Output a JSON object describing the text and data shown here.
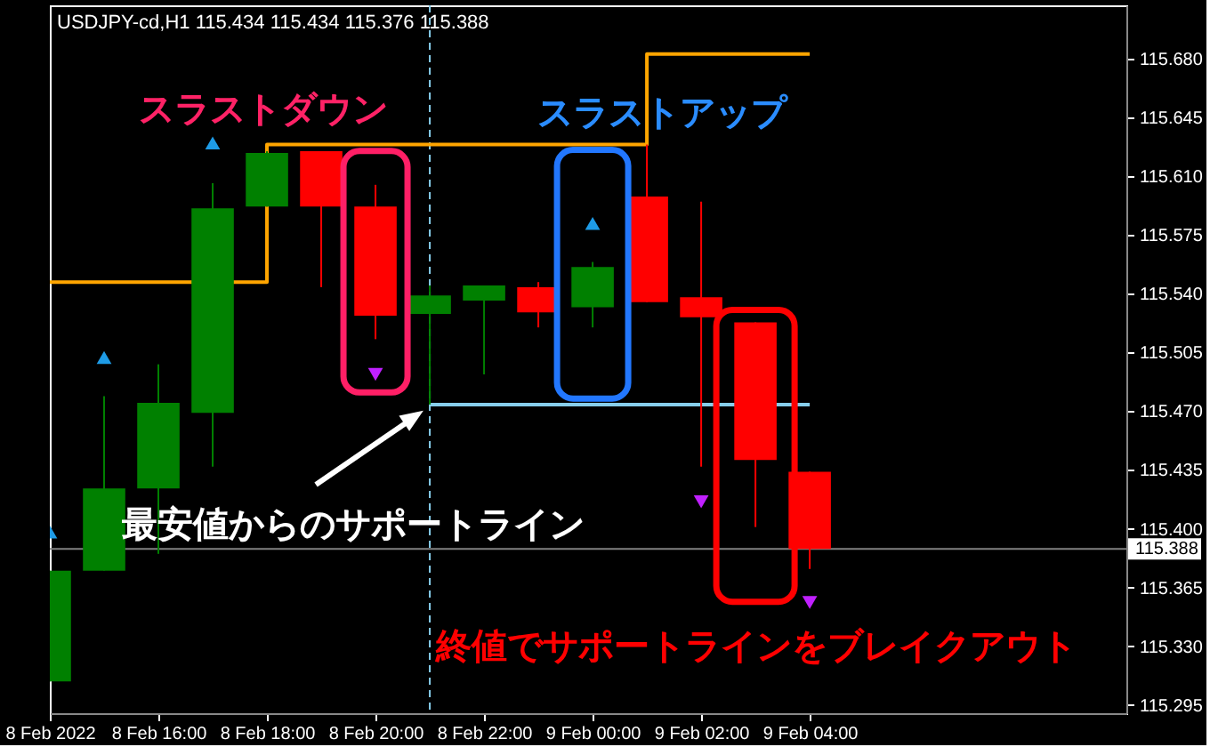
{
  "chart_data": {
    "type": "candlestick",
    "title": "USDJPY-cd,H1 115.434 115.434 115.376 115.388",
    "x": [
      "2022-02-08T14:00",
      "2022-02-08T15:00",
      "2022-02-08T16:00",
      "2022-02-08T17:00",
      "2022-02-08T18:00",
      "2022-02-08T19:00",
      "2022-02-08T20:00",
      "2022-02-08T21:00",
      "2022-02-08T22:00",
      "2022-02-08T23:00",
      "2022-02-09T00:00",
      "2022-02-09T01:00",
      "2022-02-09T02:00",
      "2022-02-09T03:00",
      "2022-02-09T04:00"
    ],
    "ohlc": [
      [
        115.309,
        115.375,
        115.309,
        115.375
      ],
      [
        115.375,
        115.479,
        115.375,
        115.424
      ],
      [
        115.424,
        115.498,
        115.385,
        115.475
      ],
      [
        115.469,
        115.606,
        115.437,
        115.591
      ],
      [
        115.592,
        115.625,
        115.592,
        115.624
      ],
      [
        115.625,
        115.625,
        115.544,
        115.592
      ],
      [
        115.592,
        115.605,
        115.513,
        115.527
      ],
      [
        115.528,
        115.545,
        115.474,
        115.539
      ],
      [
        115.536,
        115.545,
        115.492,
        115.545
      ],
      [
        115.544,
        115.547,
        115.52,
        115.529
      ],
      [
        115.532,
        115.559,
        115.52,
        115.556
      ],
      [
        115.598,
        115.629,
        115.535,
        115.535
      ],
      [
        115.538,
        115.595,
        115.437,
        115.526
      ],
      [
        115.523,
        115.523,
        115.401,
        115.441
      ],
      [
        115.434,
        115.434,
        115.376,
        115.388
      ]
    ],
    "colors": [
      "#008000",
      "#008000",
      "#008000",
      "#008000",
      "#008000",
      "#ff0000",
      "#ff0000",
      "#008000",
      "#008000",
      "#ff0000",
      "#008000",
      "#ff0000",
      "#ff0000",
      "#ff0000",
      "#ff0000"
    ],
    "series": [
      {
        "type": "step",
        "color": "#ffa500",
        "x": [
          "2022-02-08T14:00",
          "2022-02-08T18:00",
          "2022-02-09T01:00",
          "2022-02-09T04:00"
        ],
        "values": [
          115.547,
          115.629,
          115.683,
          115.683
        ]
      },
      {
        "type": "line",
        "color": "#87ceeb",
        "x": [
          "2022-02-08T21:00",
          "2022-02-09T04:00"
        ],
        "values": [
          115.474,
          115.474
        ]
      },
      {
        "type": "scatter",
        "marker": "triangle",
        "color": "#1e9be6",
        "x": [
          "2022-02-08T14:00",
          "2022-02-08T15:00",
          "2022-02-08T17:00",
          "2022-02-09T00:00"
        ],
        "values": [
          115.398,
          115.502,
          115.63,
          115.582
        ]
      },
      {
        "type": "scatter",
        "marker": "triangle",
        "color": "#c020ff",
        "x": [
          "2022-02-08T20:00",
          "2022-02-09T02:00",
          "2022-02-09T04:00"
        ],
        "values": [
          115.492,
          115.416,
          115.356
        ]
      }
    ],
    "xlim": [
      "2022-02-08T14:00",
      "2022-02-09T09:50"
    ],
    "xticks": [
      {
        "value": "2022-02-08T14:00",
        "label": "8 Feb 2022"
      },
      {
        "value": "2022-02-08T16:00",
        "label": "8 Feb 16:00"
      },
      {
        "value": "2022-02-08T18:00",
        "label": "8 Feb 18:00"
      },
      {
        "value": "2022-02-08T20:00",
        "label": "8 Feb 20:00"
      },
      {
        "value": "2022-02-08T22:00",
        "label": "8 Feb 22:00"
      },
      {
        "value": "2022-02-09T00:00",
        "label": "9 Feb 00:00"
      },
      {
        "value": "2022-02-09T02:00",
        "label": "9 Feb 02:00"
      },
      {
        "value": "2022-02-09T04:00",
        "label": "9 Feb 04:00"
      }
    ],
    "ylim": [
      115.29,
      115.712
    ],
    "yticks": [
      115.295,
      {
        "value": 115.33,
        "label": "115.330"
      },
      115.365,
      {
        "value": 115.4,
        "label": "115.400"
      },
      115.435,
      {
        "value": 115.47,
        "label": "115.470"
      },
      115.505,
      {
        "value": 115.54,
        "label": "115.540"
      },
      115.575,
      {
        "value": 115.61,
        "label": "115.610"
      },
      115.645,
      {
        "value": 115.68,
        "label": "115.680"
      }
    ],
    "ref_lines": [
      {
        "axis": "y",
        "value": 115.388,
        "label": "115.388",
        "color": "#808080"
      },
      {
        "axis": "x",
        "value": "2022-02-08T21:00",
        "color": "#87ceeb",
        "line_style": "dashed"
      }
    ],
    "annotations": [
      "スラストダウン",
      "スラストアップ",
      {
        "text": "最安値からのサポートライン",
        "x": "2022-02-08T21:00",
        "y": 115.474
      },
      "終値でサポートラインをブレイクアウト"
    ]
  }
}
